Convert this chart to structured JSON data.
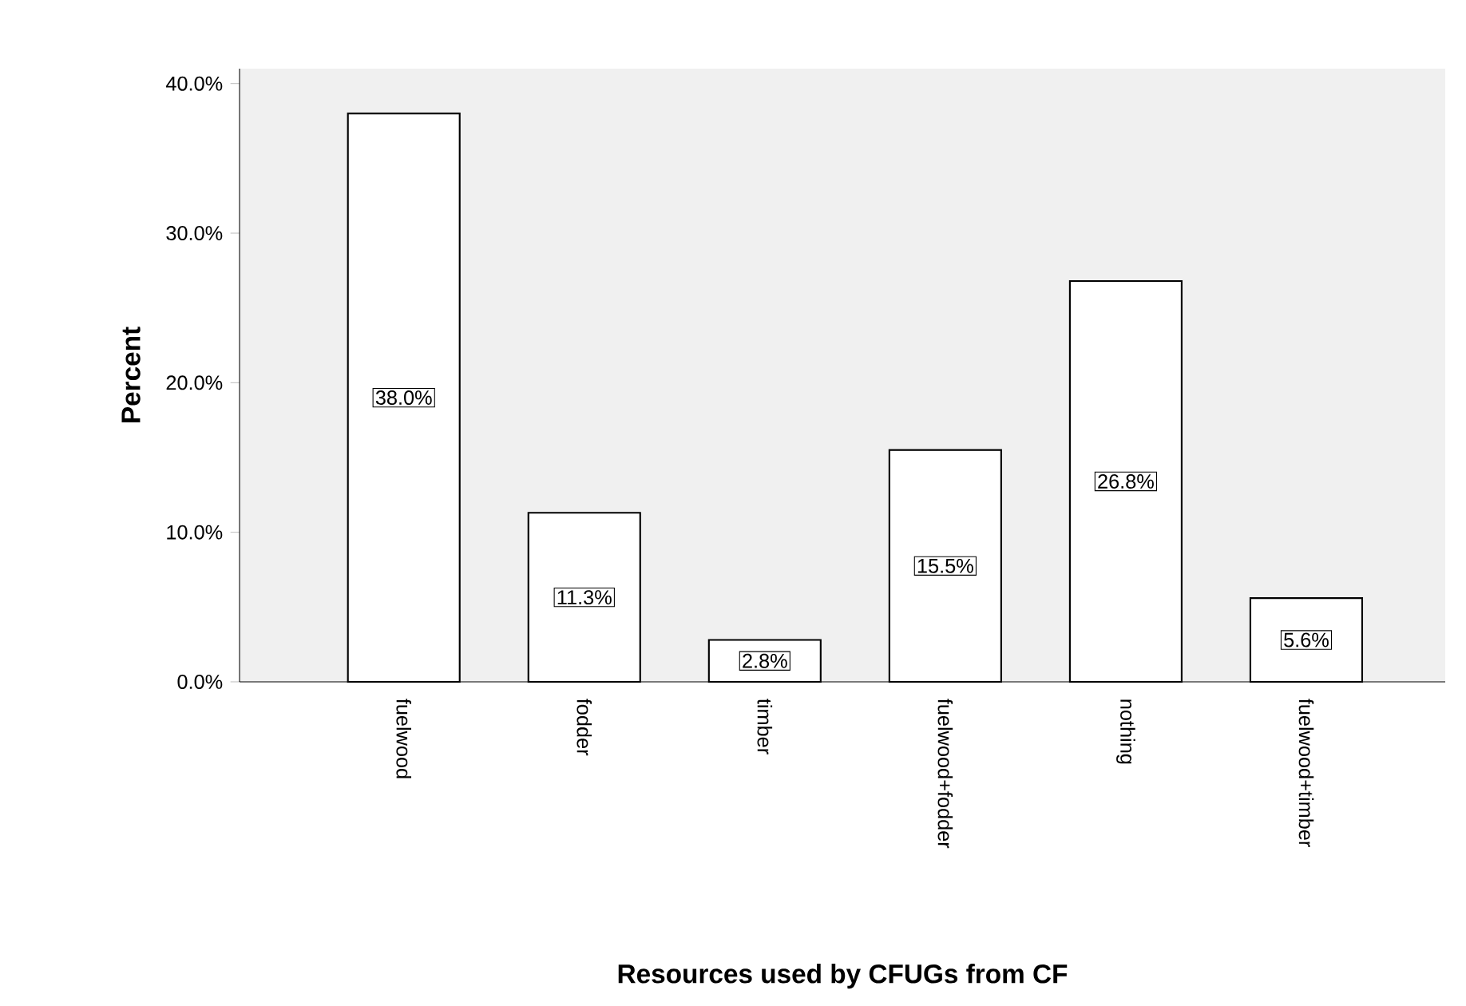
{
  "chart_data": {
    "type": "bar",
    "xlabel": "Resources used by CFUGs from CF",
    "ylabel": "Percent",
    "categories": [
      "fuelwood",
      "fodder",
      "timber",
      "fuelwood+fodder",
      "nothing",
      "fuelwood+timber"
    ],
    "values": [
      38.0,
      11.3,
      2.8,
      15.5,
      26.8,
      5.6
    ],
    "value_labels": [
      "38.0%",
      "11.3%",
      "2.8%",
      "15.5%",
      "26.8%",
      "5.6%"
    ],
    "color": "#ffffff",
    "ylim": [
      0,
      41
    ],
    "yticks": [
      {
        "value": 0,
        "label": "0.0%"
      },
      {
        "value": 10,
        "label": "10.0%"
      },
      {
        "value": 20,
        "label": "20.0%"
      },
      {
        "value": 30,
        "label": "30.0%"
      },
      {
        "value": 40,
        "label": "40.0%"
      }
    ],
    "grid": false
  }
}
